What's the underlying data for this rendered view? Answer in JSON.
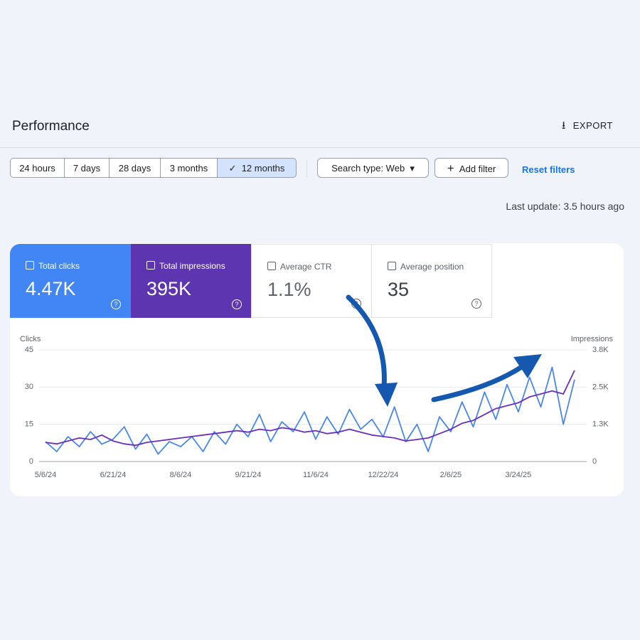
{
  "header": {
    "title": "Performance",
    "export": "EXPORT"
  },
  "filters": {
    "ranges": [
      "24 hours",
      "7 days",
      "28 days",
      "3 months",
      "12 months"
    ],
    "search_type": "Search type: Web",
    "add_filter": "Add filter",
    "reset": "Reset filters"
  },
  "last_update": "Last update: 3.5 hours ago",
  "metrics": [
    {
      "label": "Total clicks",
      "value": "4.47K"
    },
    {
      "label": "Total impressions",
      "value": "395K"
    },
    {
      "label": "Average CTR",
      "value": "1.1%"
    },
    {
      "label": "Average position",
      "value": "35"
    }
  ],
  "chart_data": {
    "type": "line",
    "y_label": "Clicks",
    "y2_label": "Impressions",
    "categories": [
      "5/6/24",
      null,
      null,
      null,
      null,
      null,
      "6/21/24",
      null,
      null,
      null,
      null,
      null,
      "8/6/24",
      null,
      null,
      null,
      null,
      null,
      "9/21/24",
      null,
      null,
      null,
      null,
      null,
      "11/6/24",
      null,
      null,
      null,
      null,
      null,
      "12/22/24",
      null,
      null,
      null,
      null,
      null,
      "2/6/25",
      null,
      null,
      null,
      null,
      null,
      "3/24/25",
      null,
      null,
      null,
      null,
      null
    ],
    "series": [
      {
        "color": "#4a86f0",
        "values": [
          8,
          4,
          10,
          6,
          12,
          7,
          9,
          14,
          5,
          11,
          3,
          8,
          6,
          10,
          4,
          12,
          7,
          15,
          10,
          19,
          8,
          16,
          12,
          20,
          9,
          18,
          11,
          21,
          13,
          17,
          10,
          22,
          8,
          15,
          4,
          18,
          12,
          24,
          14,
          28,
          17,
          31,
          20,
          34,
          22,
          38,
          15,
          33
        ]
      },
      {
        "color": "#6a2fc0",
        "axis": "y2",
        "values": [
          650,
          600,
          700,
          800,
          750,
          900,
          700,
          600,
          550,
          650,
          700,
          750,
          800,
          850,
          900,
          950,
          1000,
          1050,
          1000,
          1100,
          1050,
          1150,
          1100,
          1000,
          1050,
          950,
          1000,
          1100,
          1000,
          900,
          850,
          800,
          700,
          750,
          800,
          950,
          1100,
          1300,
          1400,
          1600,
          1800,
          1900,
          2000,
          2200,
          2300,
          2400,
          2300,
          3100
        ]
      }
    ],
    "ylim": [
      0,
      45
    ],
    "yticks": [
      0,
      15,
      30,
      45
    ],
    "y2lim": [
      0,
      3800
    ],
    "y2ticks": [
      0,
      {
        "value": 1267,
        "label": "1.3K"
      },
      {
        "value": 2533,
        "label": "2.5K"
      },
      {
        "value": 3800,
        "label": "3.8K"
      }
    ],
    "grid": true
  }
}
